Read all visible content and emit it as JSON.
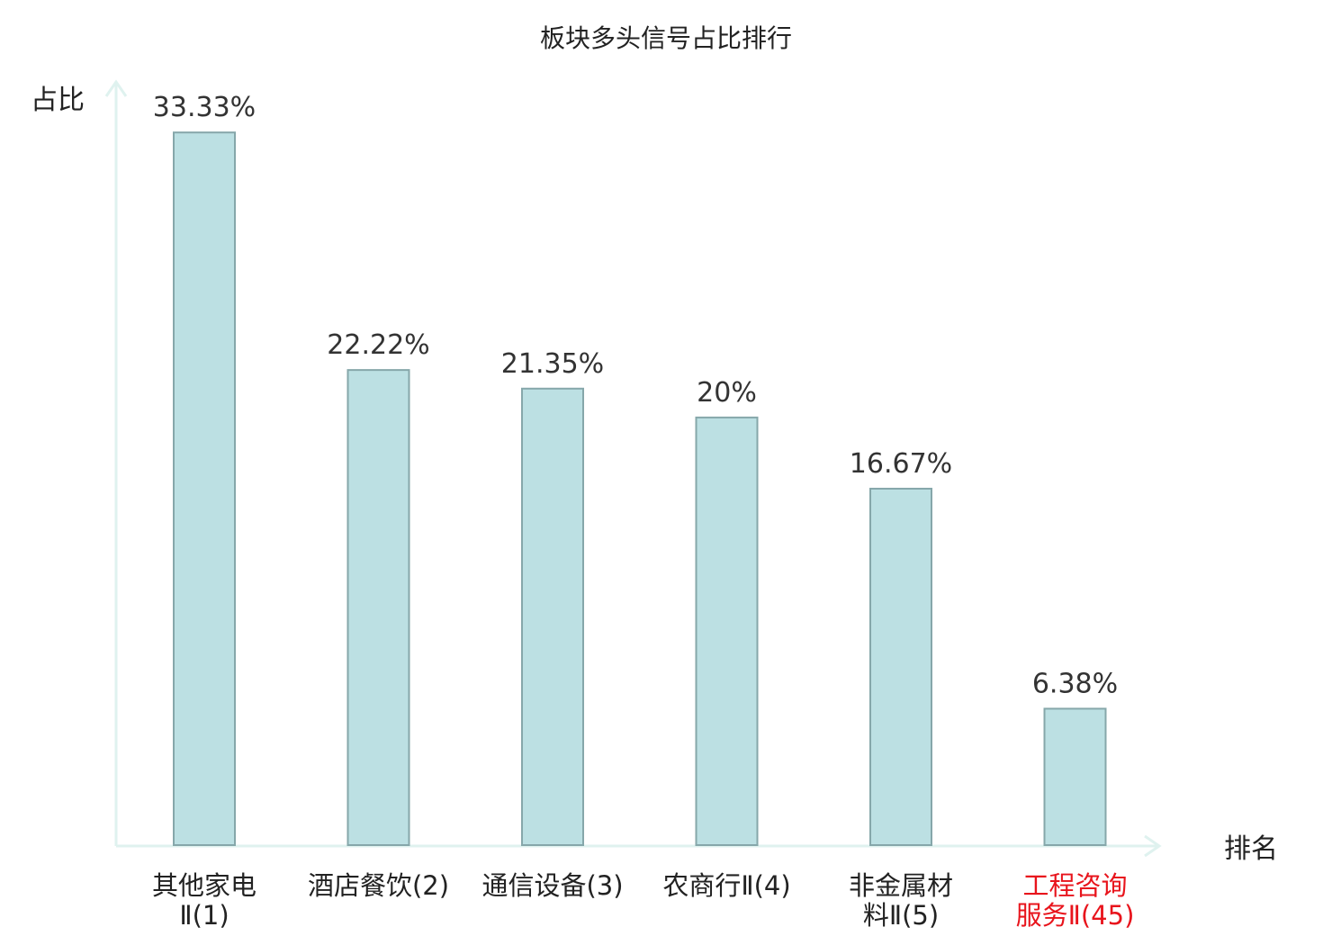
{
  "chart_data": {
    "type": "bar",
    "title": "板块多头信号占比排行",
    "xlabel": "排名",
    "ylabel": "占比",
    "categories": [
      [
        "其他家电",
        "Ⅱ(1)"
      ],
      [
        "酒店餐饮(2)"
      ],
      [
        "通信设备(3)"
      ],
      [
        "农商行Ⅱ(4)"
      ],
      [
        "非金属材",
        "料Ⅱ(5)"
      ],
      [
        "工程咨询",
        "服务Ⅱ(45)"
      ]
    ],
    "values": [
      33.33,
      22.22,
      21.35,
      20,
      16.67,
      6.38
    ],
    "value_labels": [
      "33.33%",
      "22.22%",
      "21.35%",
      "20%",
      "16.67%",
      "6.38%"
    ],
    "highlight_index": 5,
    "ylim": [
      0,
      37
    ],
    "grid": false,
    "colors": {
      "bar_fill": "#bce0e3",
      "bar_stroke": "#86a7aa",
      "axis": "#dff2ef",
      "highlight_text": "#e8141c",
      "text": "#222222"
    }
  }
}
